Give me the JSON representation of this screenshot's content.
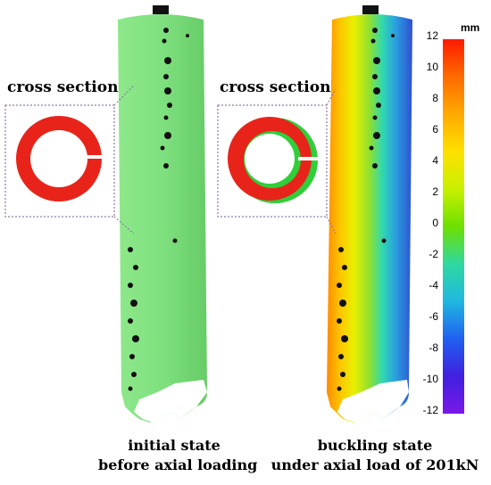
{
  "panels": [
    {
      "cross_section_title": "cross section",
      "caption_line1": "initial state",
      "caption_line2": "before axial loading"
    },
    {
      "cross_section_title": "cross section",
      "caption_line1": "buckling state",
      "caption_line2": "under axial load of 201kN"
    }
  ],
  "colorbar": {
    "unit": "mm",
    "ticks": [
      "12",
      "10",
      "8",
      "6",
      "4",
      "2",
      "0",
      "-2",
      "-4",
      "-6",
      "-8",
      "-10",
      "-12"
    ],
    "min": -12,
    "max": 12,
    "colors": [
      "#ff1a00",
      "#ff6a00",
      "#ffaa00",
      "#ffe000",
      "#c8f000",
      "#6ee000",
      "#2fd8a0",
      "#20b8e0",
      "#2060f0",
      "#4020e0",
      "#7a18e8"
    ]
  },
  "colors": {
    "initial_surface": "#7ee07e",
    "ring_red": "#e8241a",
    "ring_green": "#2fcf3a"
  }
}
